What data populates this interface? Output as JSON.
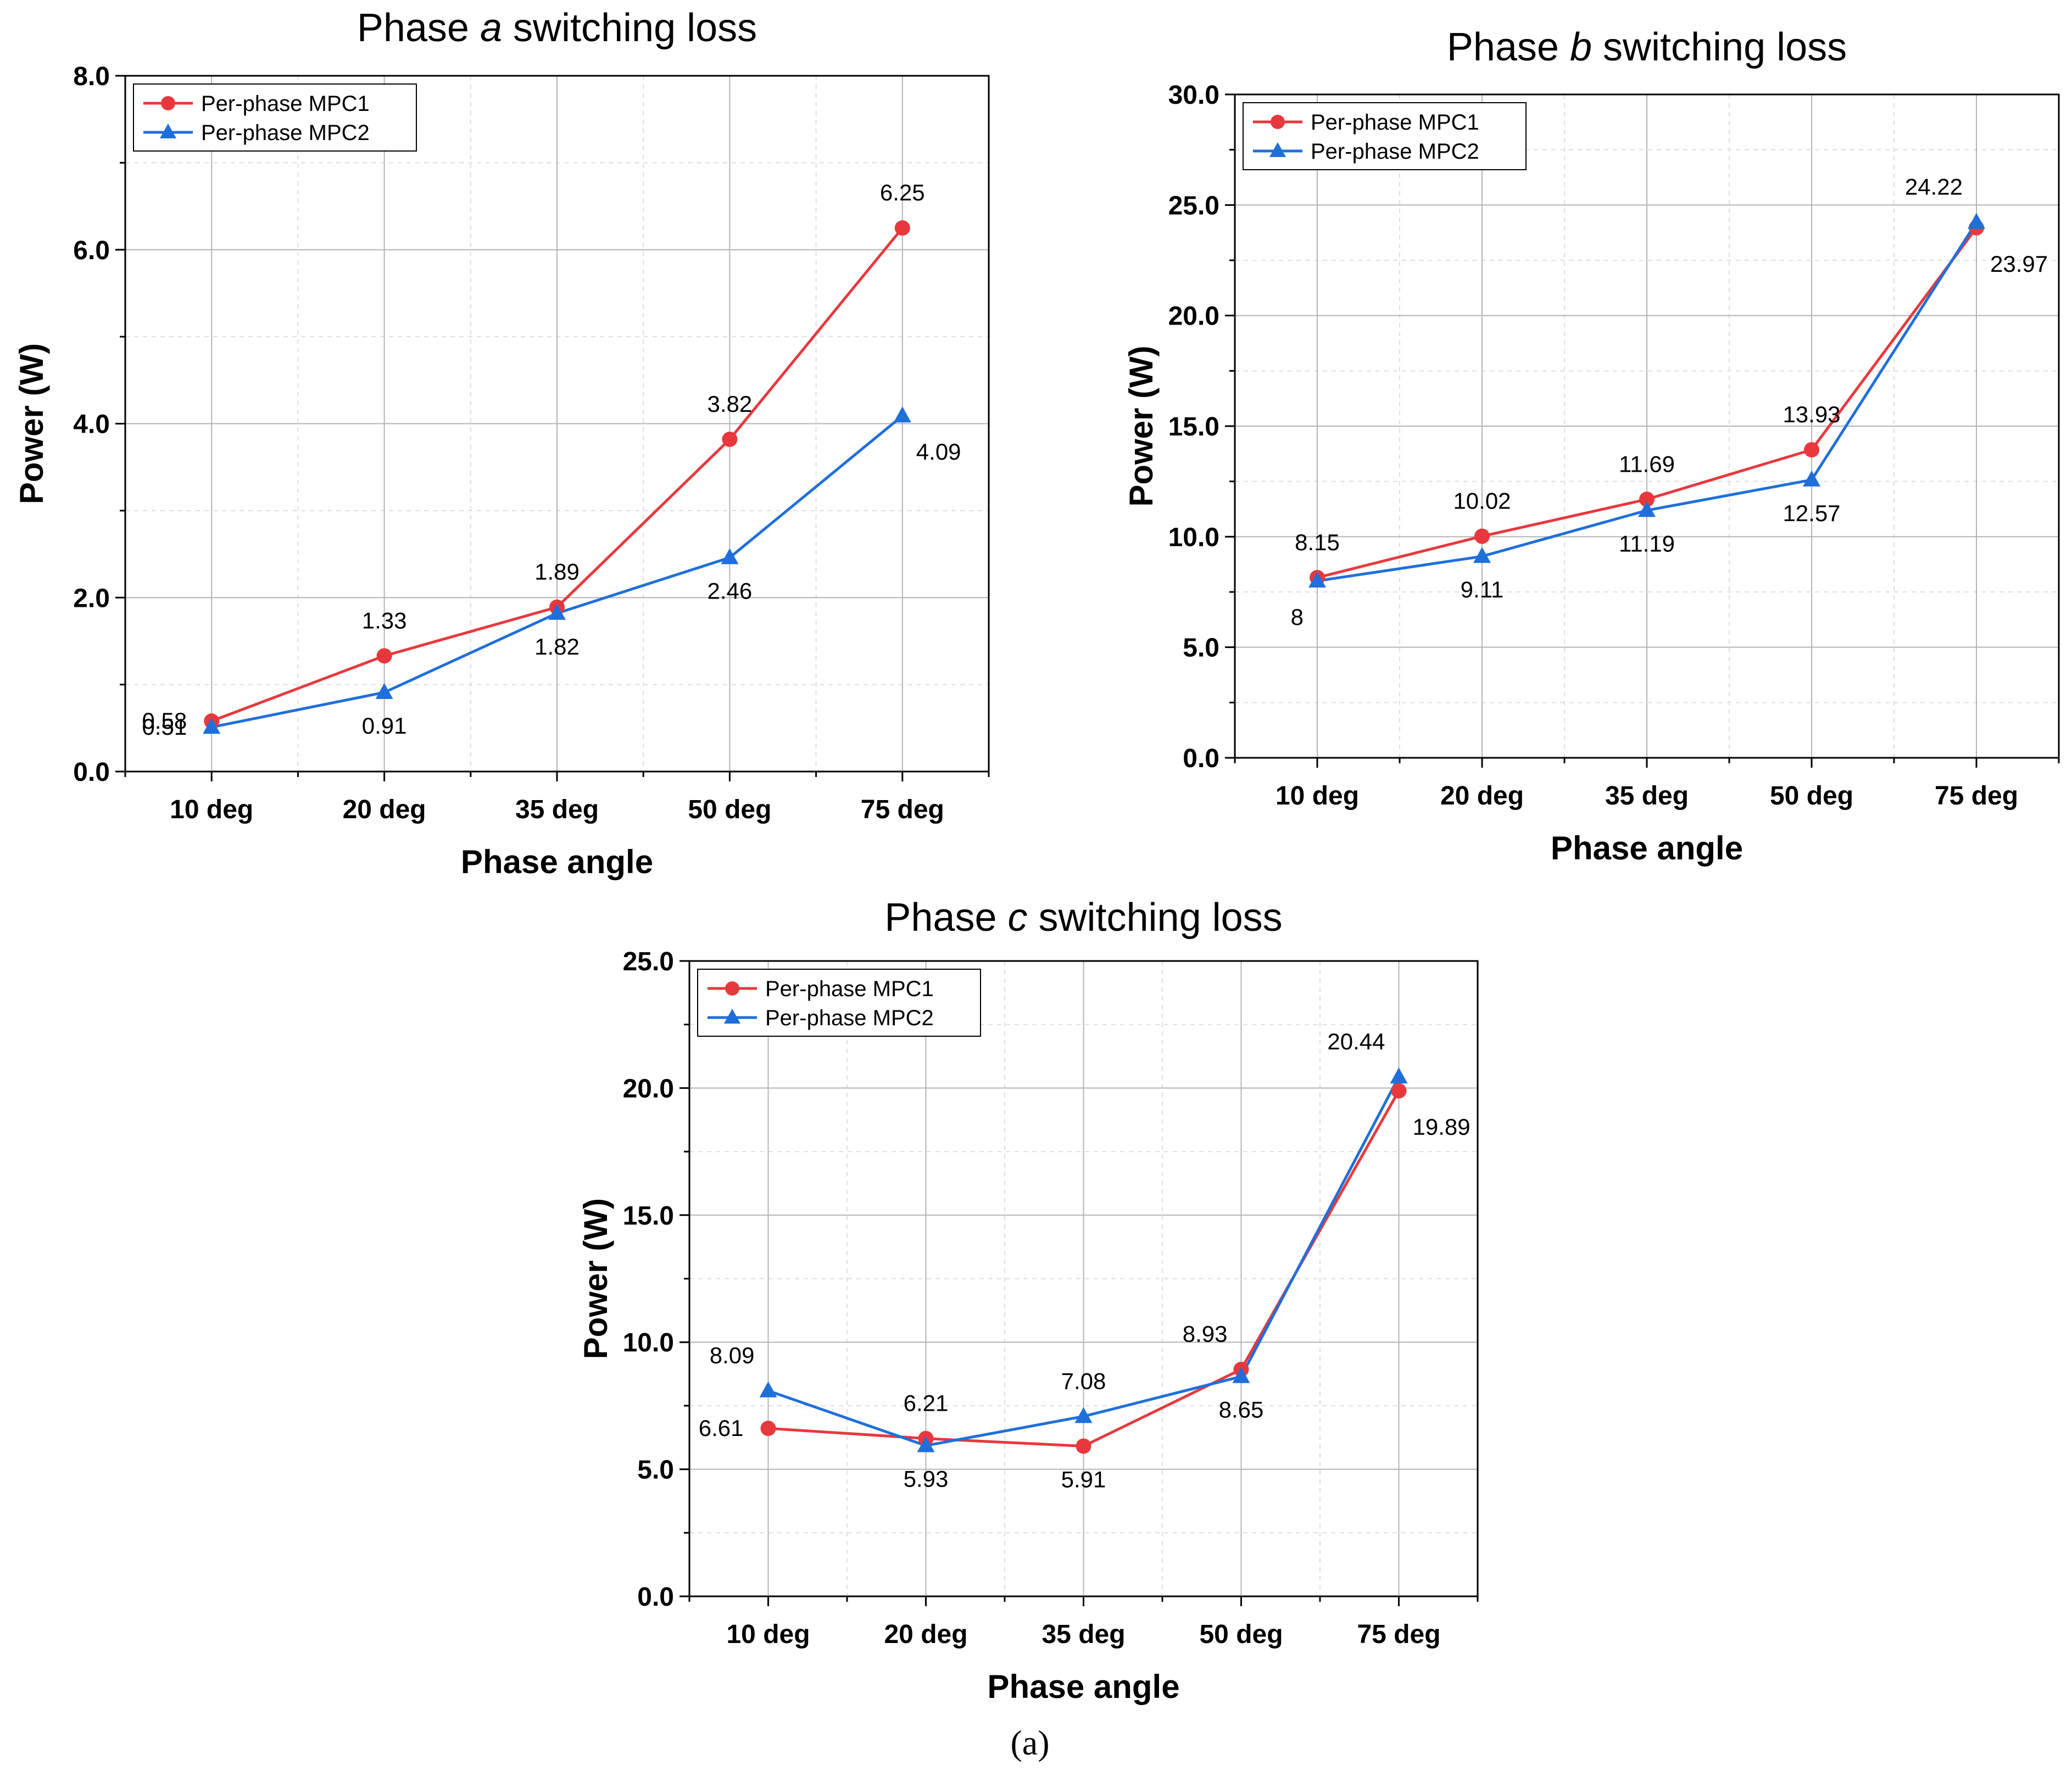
{
  "colors": {
    "series1": "#e8383d",
    "series2": "#1f6fdb",
    "grid_major": "#b4b4b4",
    "grid_minor": "#dedede",
    "axis": "#000000"
  },
  "caption": "(a)",
  "chart_data": [
    {
      "type": "line",
      "title_prefix": "Phase ",
      "title_var": "a",
      "title_suffix": " switching loss",
      "xlabel": "Phase angle",
      "ylabel": "Power (W)",
      "categories": [
        "10 deg",
        "20 deg",
        "35 deg",
        "50 deg",
        "75 deg"
      ],
      "ylim": [
        0,
        8
      ],
      "yticks": [
        0,
        2,
        4,
        6,
        8
      ],
      "ytick_labels": [
        "0.0",
        "2.0",
        "4.0",
        "6.0",
        "8.0"
      ],
      "grid": true,
      "legend": "top-left",
      "series": [
        {
          "name": "Per-phase MPC1",
          "marker": "circle",
          "values": [
            0.58,
            1.33,
            1.89,
            3.82,
            6.25
          ],
          "labels": [
            "0.58",
            "1.33",
            "1.89",
            "3.82",
            "6.25"
          ],
          "label_pos": [
            "left",
            "above",
            "above",
            "above",
            "above"
          ]
        },
        {
          "name": "Per-phase MPC2",
          "marker": "triangle",
          "values": [
            0.51,
            0.91,
            1.82,
            2.46,
            4.09
          ],
          "labels": [
            "0.51",
            "0.91",
            "1.82",
            "2.46",
            "4.09"
          ],
          "label_pos": [
            "left",
            "below",
            "below",
            "below",
            "below-right"
          ]
        }
      ]
    },
    {
      "type": "line",
      "title_prefix": "Phase ",
      "title_var": "b",
      "title_suffix": " switching loss",
      "xlabel": "Phase angle",
      "ylabel": "Power (W)",
      "categories": [
        "10 deg",
        "20 deg",
        "35 deg",
        "50 deg",
        "75 deg"
      ],
      "ylim": [
        0,
        30
      ],
      "yticks": [
        0,
        5,
        10,
        15,
        20,
        25,
        30
      ],
      "ytick_labels": [
        "0.0",
        "5.0",
        "10.0",
        "15.0",
        "20.0",
        "25.0",
        "30.0"
      ],
      "grid": true,
      "legend": "top-left",
      "series": [
        {
          "name": "Per-phase MPC1",
          "marker": "circle",
          "values": [
            8.15,
            10.02,
            11.69,
            13.93,
            23.97
          ],
          "labels": [
            "8.15",
            "10.02",
            "11.69",
            "13.93",
            "23.97"
          ],
          "label_pos": [
            "above",
            "above",
            "above",
            "above",
            "below-right"
          ]
        },
        {
          "name": "Per-phase MPC2",
          "marker": "triangle",
          "values": [
            8.0,
            9.11,
            11.19,
            12.57,
            24.22
          ],
          "labels": [
            "8",
            "9.11",
            "11.19",
            "12.57",
            "24.22"
          ],
          "label_pos": [
            "below-left",
            "below",
            "below",
            "below",
            "above-left"
          ]
        }
      ]
    },
    {
      "type": "line",
      "title_prefix": "Phase ",
      "title_var": "c",
      "title_suffix": " switching loss",
      "xlabel": "Phase angle",
      "ylabel": "Power (W)",
      "categories": [
        "10 deg",
        "20 deg",
        "35 deg",
        "50 deg",
        "75 deg"
      ],
      "ylim": [
        0,
        25
      ],
      "yticks": [
        0,
        5,
        10,
        15,
        20,
        25
      ],
      "ytick_labels": [
        "0.0",
        "5.0",
        "10.0",
        "15.0",
        "20.0",
        "25.0"
      ],
      "grid": true,
      "legend": "top-left",
      "series": [
        {
          "name": "Per-phase MPC1",
          "marker": "circle",
          "values": [
            6.61,
            6.21,
            5.91,
            8.93,
            19.89
          ],
          "labels": [
            "6.61",
            "6.21",
            "5.91",
            "8.93",
            "19.89"
          ],
          "label_pos": [
            "left",
            "above",
            "below",
            "above-left",
            "below-right"
          ]
        },
        {
          "name": "Per-phase MPC2",
          "marker": "triangle",
          "values": [
            8.09,
            5.93,
            7.08,
            8.65,
            20.44
          ],
          "labels": [
            "8.09",
            "5.93",
            "7.08",
            "8.65",
            "20.44"
          ],
          "label_pos": [
            "above-left",
            "below",
            "above",
            "below",
            "above-left"
          ]
        }
      ]
    }
  ]
}
